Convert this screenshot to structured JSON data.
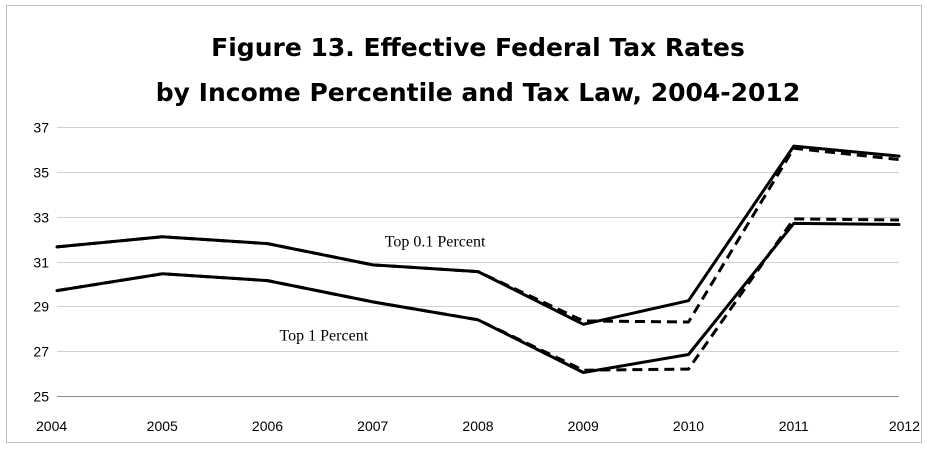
{
  "chart_data": {
    "type": "line",
    "title_lines": [
      "Figure 13. Effective Federal Tax Rates",
      "by Income Percentile and Tax Law, 2004-2012"
    ],
    "xlabel": "",
    "ylabel": "",
    "categories": [
      "2004",
      "2005",
      "2006",
      "2007",
      "2008",
      "2009",
      "2010",
      "2011",
      "2012"
    ],
    "ylim": [
      25,
      37
    ],
    "yticks": [
      "25",
      "27",
      "29",
      "31",
      "33",
      "35",
      "37"
    ],
    "grid": true,
    "legend": "none",
    "series": [
      {
        "values": [
          31.65,
          32.1,
          31.8,
          30.85,
          30.55,
          28.2,
          29.25,
          36.15,
          35.7
        ],
        "style": "solid",
        "color": "#000000"
      },
      {
        "values": [
          31.65,
          32.1,
          31.8,
          30.85,
          30.55,
          28.35,
          28.3,
          36.05,
          35.55
        ],
        "style": "dashed",
        "color": "#000000"
      },
      {
        "values": [
          29.7,
          30.45,
          30.15,
          29.2,
          28.4,
          26.05,
          26.85,
          32.7,
          32.65
        ],
        "style": "solid",
        "color": "#000000"
      },
      {
        "values": [
          29.7,
          30.45,
          30.15,
          29.2,
          28.4,
          26.15,
          26.2,
          32.9,
          32.85
        ],
        "style": "dashed",
        "color": "#000000"
      }
    ],
    "annotations": [
      {
        "text": "Top 0.1 Percent",
        "x": "2007",
        "y": 31.9
      },
      {
        "text": "Top 1 Percent",
        "x": "2006",
        "y": 27.7
      }
    ]
  }
}
